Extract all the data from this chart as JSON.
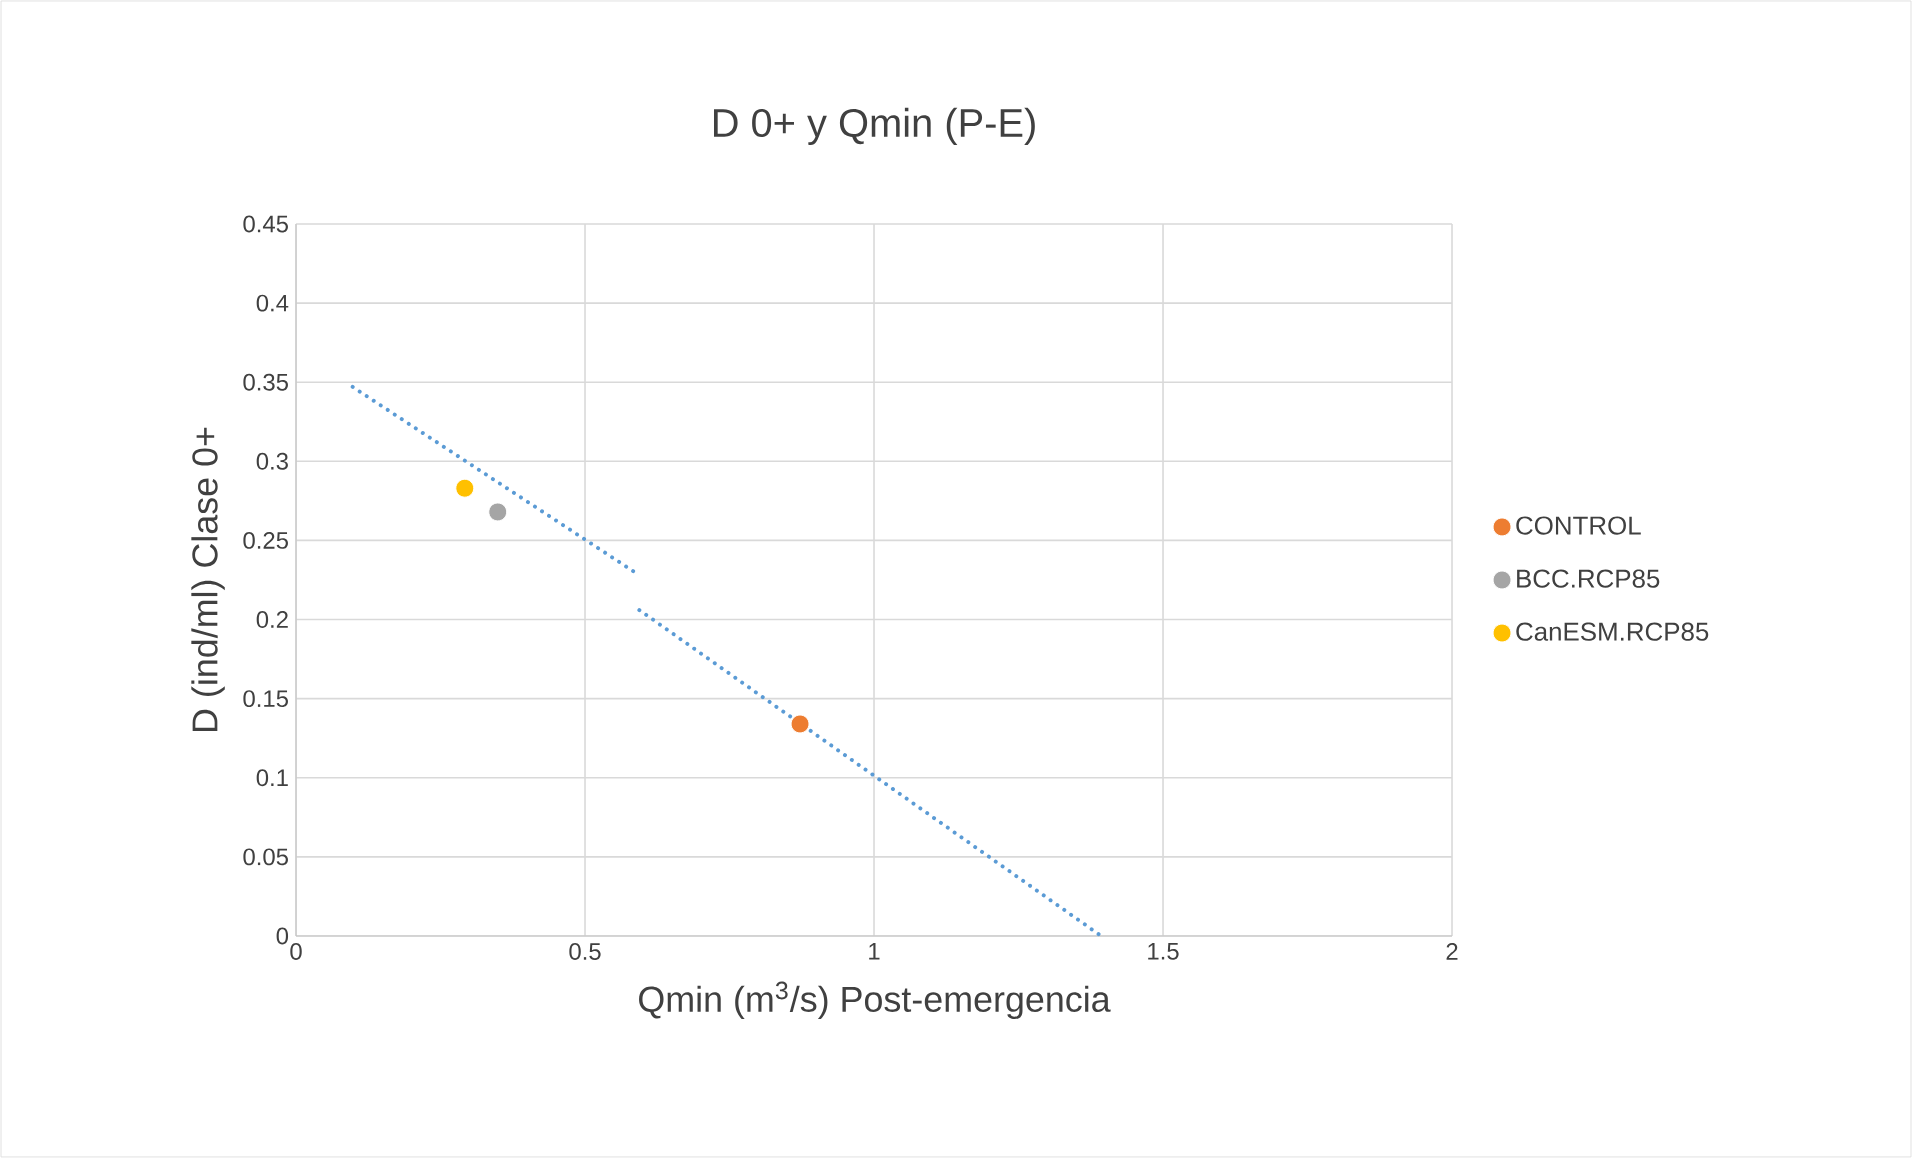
{
  "chart_data": {
    "type": "scatter",
    "title": "D 0+ y Qmin (P-E)",
    "xlabel": "Qmin (m$^{3}$/s) Post-emergencia",
    "ylabel": "D (ind/ml) Clase 0+",
    "xlim": [
      0,
      2
    ],
    "ylim": [
      0,
      0.45
    ],
    "xticks": [
      0,
      0.5,
      1,
      1.5,
      2
    ],
    "yticks": [
      0,
      0.05,
      0.1,
      0.15,
      0.2,
      0.25,
      0.3,
      0.35,
      0.4,
      0.45
    ],
    "grid": true,
    "legend": "right",
    "marker": "circle",
    "series": [
      {
        "type": "line",
        "color": "#5b9bd5",
        "line_style": "dotted",
        "marker": "none",
        "x": [
          0.098,
          0.594
        ],
        "values": [
          0.347,
          0.228
        ]
      },
      {
        "type": "line",
        "color": "#5b9bd5",
        "line_style": "dotted",
        "marker": "none",
        "x": [
          0.594,
          1.393
        ],
        "values": [
          0.206,
          0
        ]
      },
      {
        "name": "CONTROL",
        "color": "#ed7d31",
        "x": [
          0.872
        ],
        "values": [
          0.134
        ]
      },
      {
        "name": "BCC.RCP85",
        "color": "#a5a5a5",
        "x": [
          0.349
        ],
        "values": [
          0.268
        ]
      },
      {
        "name": "CanESM.RCP85",
        "color": "#ffc000",
        "x": [
          0.292
        ],
        "values": [
          0.283
        ]
      }
    ]
  }
}
